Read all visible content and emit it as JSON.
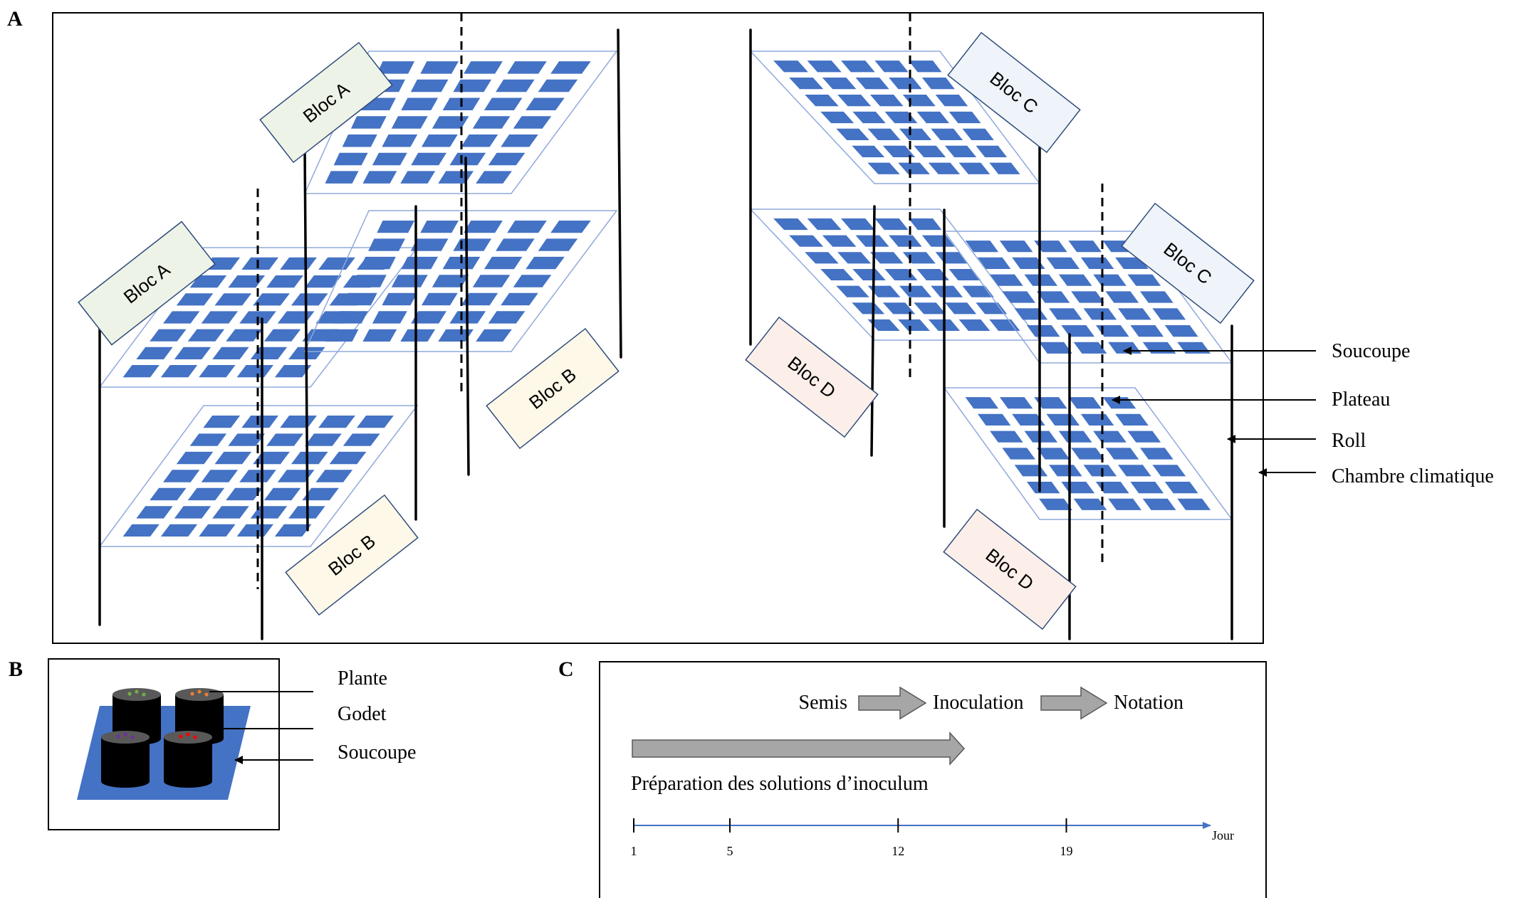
{
  "panel_labels": {
    "a": "A",
    "b": "B",
    "c": "C"
  },
  "blocks": {
    "a1": "Bloc A",
    "a2": "Bloc A",
    "b1": "Bloc B",
    "b2": "Bloc B",
    "c1": "Bloc C",
    "c2": "Bloc C",
    "d1": "Bloc D",
    "d2": "Bloc D"
  },
  "legend_a": {
    "soucoupe": "Soucoupe",
    "plateau": "Plateau",
    "roll": "Roll",
    "chambre": "Chambre climatique"
  },
  "legend_b": {
    "plante": "Plante",
    "godet": "Godet",
    "soucoupe": "Soucoupe"
  },
  "timeline": {
    "steps": [
      "Semis",
      "Inoculation",
      "Notation"
    ],
    "preparation": "Préparation des solutions d’inoculum",
    "axis_label": "Jour",
    "ticks": [
      {
        "day": 1,
        "label": "1"
      },
      {
        "day": 5,
        "label": "5"
      },
      {
        "day": 12,
        "label": "12"
      },
      {
        "day": 19,
        "label": "19"
      }
    ],
    "day_range": [
      1,
      25
    ]
  },
  "colors": {
    "saucer": "#4472c4",
    "tray_border": "#8faadc",
    "bloc_a_fill": "#eef3e7",
    "bloc_b_fill": "#fdf8e8",
    "bloc_c_fill": "#eef4f9",
    "bloc_d_fill": "#fcefe9",
    "bloc_border": "#2e4a7a",
    "arrow_fill": "#a6a6a6",
    "timeline_axis": "#4472c4"
  }
}
